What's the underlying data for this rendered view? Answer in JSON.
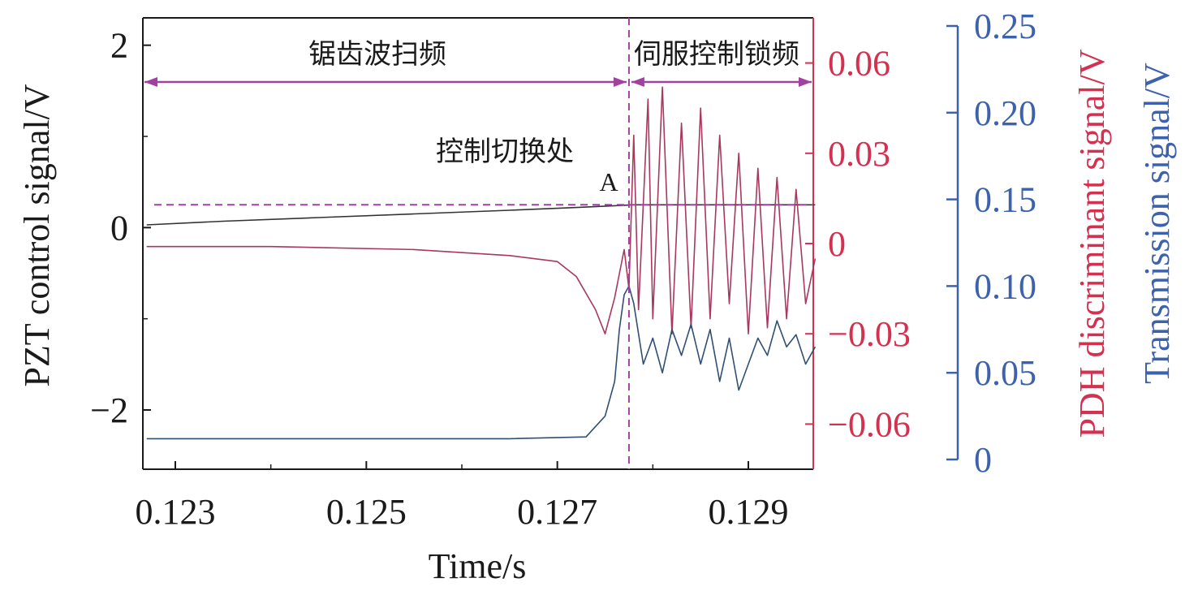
{
  "chart_data": {
    "type": "line",
    "xlabel": "Time/s",
    "x_ticks": [
      0.123,
      0.125,
      0.127,
      0.129
    ],
    "x_tick_labels": [
      "0.123",
      "0.125",
      "0.127",
      "0.129"
    ],
    "xlim": [
      0.12266,
      0.12968
    ],
    "left_axis": {
      "label": "PZT control signal/V",
      "ylim": [
        -2.65,
        2.3
      ],
      "ticks": [
        -2,
        0,
        2
      ],
      "tick_labels": [
        "−2",
        "0",
        "2"
      ],
      "color": "#1a1a1a"
    },
    "right_axis_1": {
      "label": "PDH discriminant signal/V",
      "ylim": [
        -0.075,
        0.075
      ],
      "ticks": [
        -0.06,
        -0.03,
        0,
        0.03,
        0.06
      ],
      "tick_labels": [
        "−0.06",
        "−0.03",
        "0",
        "0.03",
        "0.06"
      ],
      "color": "#d4304f"
    },
    "right_axis_2": {
      "label": "Transmission signal/V",
      "ylim": [
        0,
        0.25
      ],
      "ticks": [
        0,
        0.05,
        0.1,
        0.15,
        0.2,
        0.25
      ],
      "tick_labels": [
        "0",
        "0.05",
        "0.10",
        "0.15",
        "0.20",
        "0.25"
      ],
      "color": "#3d62ad"
    },
    "series": [
      {
        "axis": "left",
        "color": "#333333",
        "x": [
          0.1227,
          0.1235,
          0.1245,
          0.1255,
          0.1265,
          0.1272,
          0.1276,
          0.1278,
          0.1285,
          0.1297
        ],
        "y": [
          0.03,
          0.07,
          0.11,
          0.15,
          0.19,
          0.22,
          0.24,
          0.25,
          0.25,
          0.25
        ]
      },
      {
        "axis": "right_1",
        "color": "#a8385d",
        "x": [
          0.1227,
          0.124,
          0.1255,
          0.1265,
          0.127,
          0.1272,
          0.1274,
          0.1275,
          0.1276,
          0.12765,
          0.1277,
          0.12775,
          0.1278,
          0.12785,
          0.12795,
          0.128,
          0.1281,
          0.1282,
          0.1283,
          0.1284,
          0.1285,
          0.1286,
          0.1287,
          0.1288,
          0.1289,
          0.129,
          0.1291,
          0.1292,
          0.1293,
          0.1294,
          0.1295,
          0.1296,
          0.1297
        ],
        "y": [
          -0.001,
          -0.001,
          -0.002,
          -0.004,
          -0.006,
          -0.011,
          -0.022,
          -0.03,
          -0.018,
          -0.01,
          -0.002,
          -0.015,
          0.036,
          -0.022,
          0.048,
          -0.025,
          0.052,
          -0.03,
          0.04,
          -0.028,
          0.045,
          -0.025,
          0.036,
          -0.02,
          0.03,
          -0.03,
          0.025,
          -0.028,
          0.022,
          -0.025,
          0.018,
          -0.02,
          -0.005
        ]
      },
      {
        "axis": "right_2",
        "color": "#2f4f73",
        "x": [
          0.1227,
          0.1245,
          0.1265,
          0.1273,
          0.1275,
          0.1276,
          0.12765,
          0.1277,
          0.12775,
          0.1278,
          0.1279,
          0.128,
          0.1281,
          0.1282,
          0.1283,
          0.1284,
          0.1285,
          0.1286,
          0.1287,
          0.1288,
          0.1289,
          0.129,
          0.1291,
          0.1292,
          0.1293,
          0.1294,
          0.1295,
          0.1296,
          0.1297
        ],
        "y": [
          0.012,
          0.012,
          0.012,
          0.013,
          0.025,
          0.045,
          0.075,
          0.095,
          0.1,
          0.09,
          0.055,
          0.07,
          0.05,
          0.075,
          0.06,
          0.078,
          0.055,
          0.075,
          0.045,
          0.07,
          0.04,
          0.055,
          0.07,
          0.06,
          0.08,
          0.065,
          0.072,
          0.055,
          0.065
        ]
      }
    ],
    "annotations": {
      "sweep_label": "锯齿波扫频",
      "lock_label": "伺服控制锁频",
      "switch_label": "控制切换处",
      "point_label": "A",
      "switch_time": 0.12775,
      "a_level_left_axis": 0.25,
      "color": "#a040a0"
    }
  }
}
